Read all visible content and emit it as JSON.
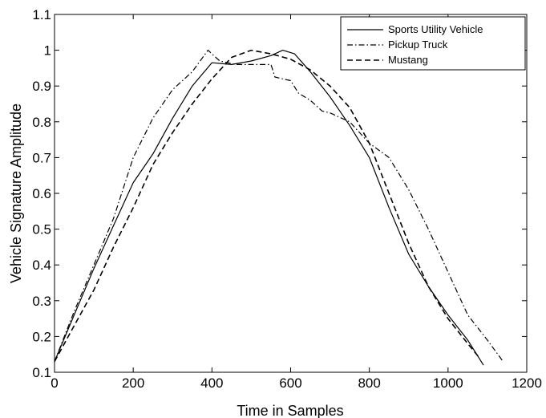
{
  "chart_data": {
    "type": "line",
    "title": "",
    "xlabel": "Time in Samples",
    "ylabel": "Vehicle Signature Amplitude",
    "xlim": [
      0,
      1200
    ],
    "ylim": [
      0.1,
      1.1
    ],
    "xticks": [
      0,
      200,
      400,
      600,
      800,
      1000,
      1200
    ],
    "yticks": [
      0.1,
      0.2,
      0.3,
      0.4,
      0.5,
      0.6,
      0.7,
      0.8,
      0.9,
      1,
      1.1
    ],
    "grid": false,
    "legend_position": "top-right",
    "series": [
      {
        "name": "Sports Utility Vehicle",
        "style": "solid",
        "x": [
          0,
          50,
          100,
          150,
          200,
          250,
          300,
          350,
          400,
          450,
          500,
          550,
          580,
          610,
          650,
          700,
          750,
          800,
          850,
          900,
          950,
          1000,
          1050,
          1090
        ],
        "y": [
          0.13,
          0.26,
          0.39,
          0.51,
          0.63,
          0.71,
          0.81,
          0.9,
          0.965,
          0.96,
          0.97,
          0.985,
          1.0,
          0.99,
          0.94,
          0.87,
          0.79,
          0.7,
          0.56,
          0.43,
          0.34,
          0.26,
          0.19,
          0.12
        ]
      },
      {
        "name": "Pickup Truck",
        "style": "dashdot",
        "x": [
          0,
          50,
          100,
          150,
          200,
          250,
          300,
          350,
          390,
          400,
          420,
          460,
          520,
          550,
          560,
          580,
          600,
          620,
          650,
          680,
          700,
          750,
          800,
          850,
          900,
          950,
          1000,
          1050,
          1100,
          1140
        ],
        "y": [
          0.13,
          0.27,
          0.4,
          0.53,
          0.7,
          0.81,
          0.89,
          0.94,
          1.0,
          0.99,
          0.97,
          0.96,
          0.96,
          0.96,
          0.925,
          0.92,
          0.915,
          0.88,
          0.86,
          0.83,
          0.825,
          0.8,
          0.74,
          0.7,
          0.61,
          0.5,
          0.38,
          0.26,
          0.19,
          0.13
        ]
      },
      {
        "name": "Mustang",
        "style": "dashed",
        "x": [
          0,
          50,
          100,
          150,
          200,
          250,
          300,
          350,
          400,
          450,
          500,
          550,
          600,
          650,
          700,
          750,
          800,
          850,
          900,
          950,
          1000,
          1050,
          1080
        ],
        "y": [
          0.13,
          0.23,
          0.33,
          0.45,
          0.56,
          0.68,
          0.77,
          0.85,
          0.92,
          0.98,
          1.0,
          0.99,
          0.975,
          0.945,
          0.9,
          0.84,
          0.74,
          0.6,
          0.46,
          0.34,
          0.25,
          0.18,
          0.14
        ]
      }
    ]
  }
}
